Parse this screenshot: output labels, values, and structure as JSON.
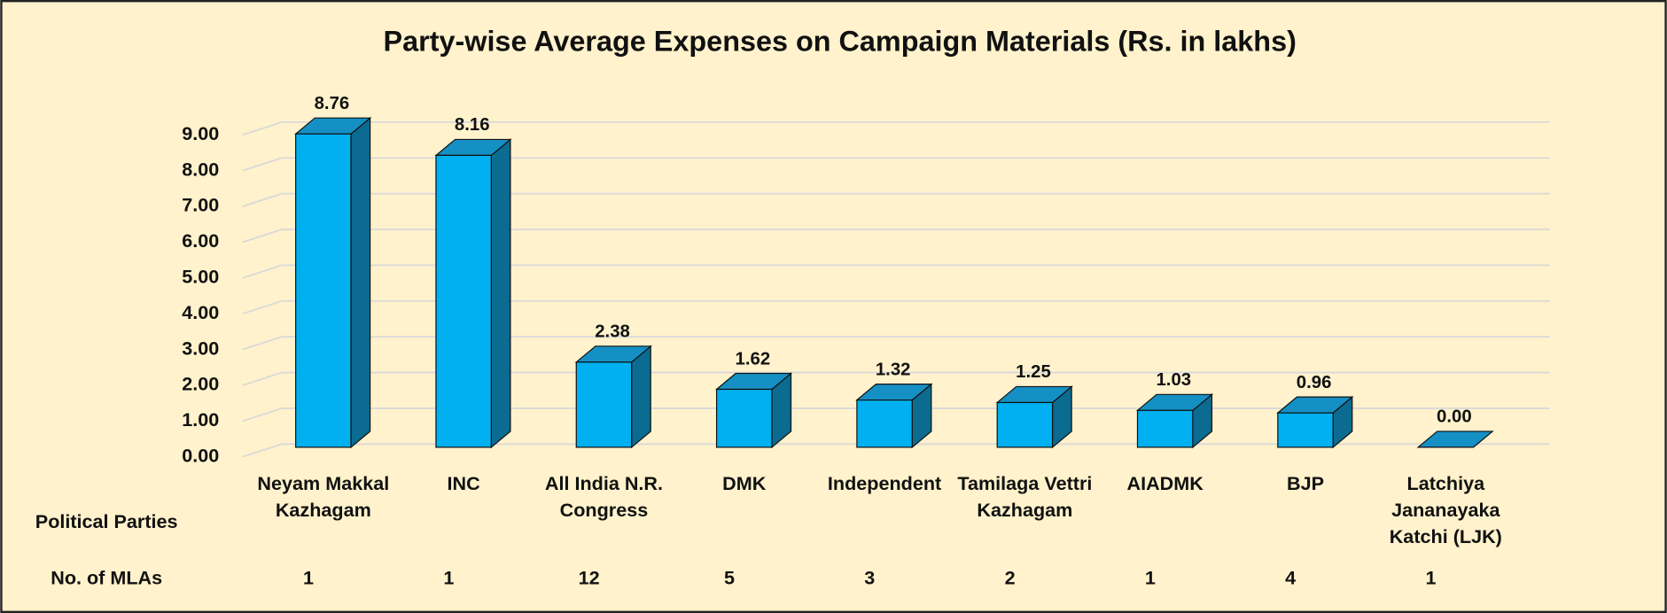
{
  "chart_data": {
    "type": "bar3d",
    "title": "Party-wise Average Expenses on Campaign Materials (Rs. in lakhs)",
    "x_label": "Political Parties",
    "row_label": "No. of MLAs",
    "categories": [
      "Neyam Makkal Kazhagam",
      "INC",
      "All India N.R. Congress",
      "DMK",
      "Independent",
      "Tamilaga Vettri Kazhagam",
      "AIADMK",
      "BJP",
      "Latchiya Jananayaka Katchi (LJK)"
    ],
    "values": [
      8.76,
      8.16,
      2.38,
      1.62,
      1.32,
      1.25,
      1.03,
      0.96,
      0
    ],
    "value_labels": [
      "8.76",
      "8.16",
      "2.38",
      "1.62",
      "1.32",
      "1.25",
      "1.03",
      "0.96",
      "0.00"
    ],
    "mlas": [
      1,
      1,
      12,
      5,
      3,
      2,
      1,
      4,
      1
    ],
    "color": "#00b0f0",
    "ylim": [
      0,
      10
    ],
    "yticks": [
      {
        "value": 0,
        "label": "0.00"
      },
      {
        "value": 1,
        "label": "1.00"
      },
      {
        "value": 2,
        "label": "2.00"
      },
      {
        "value": 3,
        "label": "3.00"
      },
      {
        "value": 4,
        "label": "4.00"
      },
      {
        "value": 5,
        "label": "5.00"
      },
      {
        "value": 6,
        "label": "6.00"
      },
      {
        "value": 7,
        "label": "7.00"
      },
      {
        "value": 8,
        "label": "8.00"
      },
      {
        "value": 9,
        "label": "9.00"
      }
    ],
    "grid": true
  }
}
